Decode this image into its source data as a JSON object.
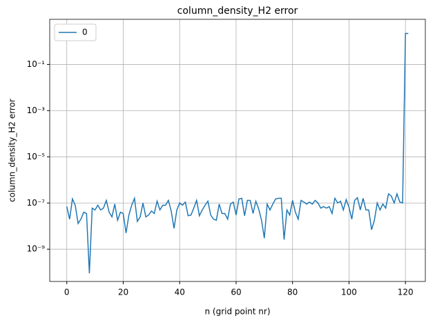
{
  "chart_data": {
    "type": "line",
    "title": "column_density_H2 error",
    "xlabel": "n (grid point nr)",
    "ylabel": "column_density_H2 error",
    "x": [
      0,
      1,
      2,
      3,
      4,
      5,
      6,
      7,
      8,
      9,
      10,
      11,
      12,
      13,
      14,
      15,
      16,
      17,
      18,
      19,
      20,
      21,
      22,
      23,
      24,
      25,
      26,
      27,
      28,
      29,
      30,
      31,
      32,
      33,
      34,
      35,
      36,
      37,
      38,
      39,
      40,
      41,
      42,
      43,
      44,
      45,
      46,
      47,
      48,
      49,
      50,
      51,
      52,
      53,
      54,
      55,
      56,
      57,
      58,
      59,
      60,
      61,
      62,
      63,
      64,
      65,
      66,
      67,
      68,
      69,
      70,
      71,
      72,
      73,
      74,
      75,
      76,
      77,
      78,
      79,
      80,
      81,
      82,
      83,
      84,
      85,
      86,
      87,
      88,
      89,
      90,
      91,
      92,
      93,
      94,
      95,
      96,
      97,
      98,
      99,
      100,
      101,
      102,
      103,
      104,
      105,
      106,
      107,
      108,
      109,
      110,
      111,
      112,
      113,
      114,
      115,
      116,
      117,
      118,
      119,
      120,
      121
    ],
    "series": [
      {
        "name": "0",
        "color": "#1f77b4",
        "values": [
          7e-08,
          2e-08,
          1.5e-07,
          8e-08,
          1.3e-08,
          2e-08,
          4e-08,
          3.5e-08,
          9e-11,
          6e-08,
          5e-08,
          8e-08,
          5e-08,
          6e-08,
          1.3e-07,
          4e-08,
          2.5e-08,
          9e-08,
          1.8e-08,
          4e-08,
          3.5e-08,
          5e-09,
          3e-08,
          8e-08,
          1.6e-07,
          1.6e-08,
          2.5e-08,
          1e-07,
          2.5e-08,
          3e-08,
          4.5e-08,
          3.5e-08,
          1.2e-07,
          5e-08,
          8e-08,
          8e-08,
          1.3e-07,
          4.5e-08,
          8e-09,
          5e-08,
          1e-07,
          8e-08,
          1.1e-07,
          2.8e-08,
          3e-08,
          6e-08,
          1.3e-07,
          2.8e-08,
          5e-08,
          8e-08,
          1.2e-07,
          3e-08,
          2e-08,
          1.8e-08,
          9e-08,
          3.5e-08,
          3.5e-08,
          2e-08,
          9e-08,
          1.1e-07,
          3e-08,
          1.5e-07,
          1.6e-07,
          2.8e-08,
          1.3e-07,
          1.3e-07,
          3.5e-08,
          1.2e-07,
          5.5e-08,
          1.8e-08,
          3e-09,
          9e-08,
          5e-08,
          9e-08,
          1.5e-07,
          1.6e-07,
          1.6e-07,
          2.6e-09,
          5e-08,
          3e-08,
          1.3e-07,
          4e-08,
          2e-08,
          1.3e-07,
          1.1e-07,
          9e-08,
          1.1e-07,
          9e-08,
          1.3e-07,
          1e-07,
          6e-08,
          7e-08,
          6e-08,
          7e-08,
          3.5e-08,
          1.6e-07,
          1e-07,
          1.2e-07,
          5e-08,
          1.4e-07,
          6.5e-08,
          2e-08,
          1.3e-07,
          1.7e-07,
          5e-08,
          1.6e-07,
          5e-08,
          5e-08,
          7e-09,
          1.8e-08,
          1e-07,
          5e-08,
          9e-08,
          6e-08,
          2.5e-07,
          2e-07,
          1e-07,
          2.5e-07,
          1.1e-07,
          1e-07,
          2.2,
          2.2
        ]
      }
    ],
    "xlim": [
      -6.05,
      127.05
    ],
    "xticks": [
      0,
      20,
      40,
      60,
      80,
      100,
      120
    ],
    "ylim": [
      4e-11,
      9
    ],
    "log_y": true,
    "yticks": [
      {
        "value": 1e-09,
        "label": "10⁻⁹"
      },
      {
        "value": 1e-07,
        "label": "10⁻⁷"
      },
      {
        "value": 1e-05,
        "label": "10⁻⁵"
      },
      {
        "value": 0.001,
        "label": "10⁻³"
      },
      {
        "value": 0.1,
        "label": "10⁻¹"
      }
    ],
    "grid": true,
    "legend_loc": "upper left"
  }
}
